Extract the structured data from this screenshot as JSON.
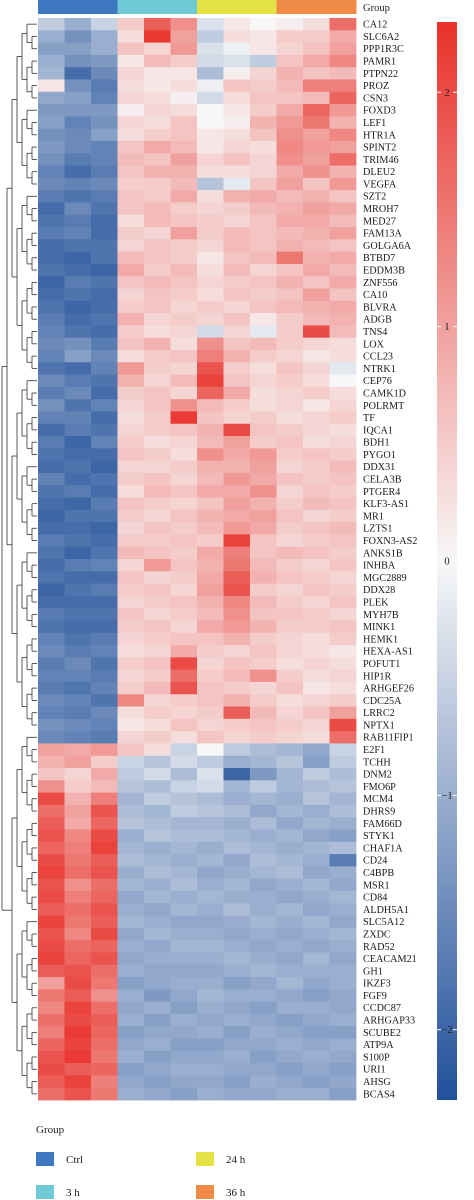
{
  "chart_data": {
    "type": "heatmap",
    "annotation_title": "Group",
    "legend_title": "Group",
    "groups": [
      {
        "name": "Ctrl",
        "color": "#3d78c0",
        "n": 3
      },
      {
        "name": "3 h",
        "color": "#6fc9d6",
        "n": 3
      },
      {
        "name": "24 h",
        "color": "#e4e244",
        "n": 3
      },
      {
        "name": "36 h",
        "color": "#ef8a47",
        "n": 3
      }
    ],
    "colorbar": {
      "ticks": [
        2,
        1,
        0,
        -1,
        -2
      ],
      "tick_labels": [
        "2",
        "1",
        "0",
        "−1",
        "−2"
      ],
      "range": [
        -2.3,
        2.3
      ],
      "low_color": "#21509a",
      "mid_color": "#f7f7f7",
      "high_color": "#e8322a"
    },
    "genes": [
      "CA12",
      "SLC6A2",
      "PPP1R3C",
      "PAMR1",
      "PTPN22",
      "PROZ",
      "CSN3",
      "FOXD3",
      "LEF1",
      "HTR1A",
      "SPINT2",
      "TRIM46",
      "DLEU2",
      "VEGFA",
      "SZT2",
      "MROH7",
      "MED27",
      "FAM13A",
      "GOLGA6A",
      "BTBD7",
      "EDDM3B",
      "ZNF556",
      "CA10",
      "BLVRA",
      "ADGB",
      "TNS4",
      "LOX",
      "CCL23",
      "NTRK1",
      "CEP76",
      "CAMK1D",
      "POLRMT",
      "TF",
      "IQCA1",
      "BDH1",
      "PYGO1",
      "DDX31",
      "CELA3B",
      "PTGER4",
      "KLF3-AS1",
      "MR1",
      "LZTS1",
      "FOXN3-AS2",
      "ANKS1B",
      "INHBA",
      "MGC2889",
      "DDX28",
      "PLEK",
      "MYH7B",
      "MINK1",
      "HEMK1",
      "HEXA-AS1",
      "POFUT1",
      "HIP1R",
      "ARHGEF26",
      "CDC25A",
      "LRRC2",
      "NPTX1",
      "RAB11FIP1",
      "E2F1",
      "TCHH",
      "DNM2",
      "FMO6P",
      "MCM4",
      "DHRS9",
      "FAM66D",
      "STYK1",
      "CHAF1A",
      "CD24",
      "C4BPB",
      "MSR1",
      "CD84",
      "ALDH5A1",
      "SLC5A12",
      "ZXDC",
      "RAD52",
      "CEACAM21",
      "GH1",
      "IKZF3",
      "FGF9",
      "CCDC87",
      "ARHGAP33",
      "SCUBE2",
      "ATP9A",
      "S100P",
      "URI1",
      "AHSG",
      "BCAS4"
    ],
    "values": [
      [
        -0.6,
        -1.0,
        -0.5,
        0.5,
        1.8,
        1.2,
        -0.3,
        0.2,
        0.0,
        0.1,
        0.3,
        1.6
      ],
      [
        -1.0,
        -1.4,
        -1.0,
        0.3,
        2.2,
        1.0,
        -0.6,
        0.3,
        0.2,
        0.5,
        0.5,
        0.9
      ],
      [
        -1.2,
        -1.2,
        -1.0,
        0.6,
        0.4,
        1.1,
        -0.3,
        -0.1,
        0.2,
        0.4,
        0.6,
        1.0
      ],
      [
        -1.0,
        -1.4,
        -1.3,
        0.2,
        0.7,
        0.5,
        -0.4,
        -0.3,
        -0.6,
        0.6,
        0.9,
        1.3
      ],
      [
        -0.9,
        -1.9,
        -1.5,
        0.4,
        0.2,
        0.2,
        -0.8,
        0.1,
        0.4,
        0.8,
        0.6,
        0.7
      ],
      [
        0.2,
        -1.4,
        -1.7,
        0.3,
        0.2,
        0.3,
        -0.1,
        0.6,
        0.5,
        0.7,
        1.4,
        1.4
      ],
      [
        -1.1,
        -1.2,
        -1.6,
        0.4,
        0.3,
        0.1,
        -0.4,
        0.3,
        0.6,
        0.6,
        0.7,
        1.7
      ],
      [
        -1.3,
        -1.3,
        -1.3,
        0.1,
        0.4,
        0.3,
        0.0,
        0.2,
        0.5,
        0.9,
        1.7,
        1.1
      ],
      [
        -1.2,
        -1.6,
        -1.4,
        0.4,
        0.3,
        0.6,
        0.0,
        0.1,
        0.8,
        1.1,
        1.5,
        0.8
      ],
      [
        -1.4,
        -1.5,
        -1.2,
        0.3,
        0.5,
        0.6,
        0.2,
        0.3,
        0.6,
        1.2,
        1.0,
        1.3
      ],
      [
        -1.3,
        -1.5,
        -1.6,
        0.6,
        0.9,
        0.7,
        0.2,
        0.4,
        0.3,
        1.3,
        1.1,
        1.0
      ],
      [
        -1.4,
        -1.7,
        -1.6,
        0.7,
        0.6,
        1.0,
        0.4,
        0.6,
        0.4,
        1.2,
        1.0,
        1.6
      ],
      [
        -1.6,
        -1.9,
        -1.7,
        0.6,
        0.8,
        0.8,
        0.3,
        0.3,
        0.4,
        0.9,
        1.2,
        0.8
      ],
      [
        -1.5,
        -1.6,
        -1.5,
        0.5,
        0.5,
        0.7,
        -0.7,
        -0.2,
        0.6,
        1.0,
        0.6,
        1.1
      ],
      [
        -1.7,
        -1.8,
        -1.7,
        0.6,
        0.5,
        0.9,
        0.3,
        0.8,
        0.9,
        0.7,
        0.8,
        0.6
      ],
      [
        -1.9,
        -1.5,
        -1.8,
        0.6,
        0.7,
        0.5,
        0.4,
        0.5,
        0.7,
        0.8,
        1.0,
        0.9
      ],
      [
        -1.8,
        -1.7,
        -1.9,
        0.3,
        0.7,
        0.6,
        0.5,
        0.4,
        0.6,
        0.9,
        0.9,
        0.7
      ],
      [
        -1.7,
        -1.6,
        -1.9,
        0.5,
        0.4,
        1.0,
        0.5,
        0.7,
        0.6,
        0.7,
        0.8,
        1.0
      ],
      [
        -1.9,
        -1.8,
        -1.8,
        0.4,
        0.6,
        0.5,
        0.4,
        0.7,
        0.6,
        0.8,
        0.7,
        0.6
      ],
      [
        -1.9,
        -2.0,
        -1.8,
        0.7,
        0.6,
        0.5,
        0.2,
        0.6,
        0.7,
        1.5,
        0.8,
        0.9
      ],
      [
        -1.8,
        -1.9,
        -2.0,
        0.9,
        0.5,
        0.7,
        0.3,
        0.7,
        0.4,
        0.6,
        0.9,
        0.7
      ],
      [
        -2.0,
        -1.7,
        -1.8,
        0.6,
        0.7,
        0.6,
        0.4,
        0.5,
        0.6,
        0.8,
        0.6,
        0.9
      ],
      [
        -1.9,
        -1.8,
        -1.9,
        0.4,
        0.6,
        0.5,
        0.3,
        0.6,
        0.5,
        0.6,
        1.0,
        0.6
      ],
      [
        -1.8,
        -2.0,
        -1.9,
        0.5,
        0.6,
        0.4,
        0.5,
        0.4,
        0.6,
        0.7,
        0.8,
        0.9
      ],
      [
        -1.7,
        -1.9,
        -1.8,
        0.8,
        0.4,
        0.5,
        0.4,
        0.6,
        0.2,
        0.5,
        0.7,
        0.8
      ],
      [
        -1.6,
        -1.8,
        -1.9,
        0.5,
        0.3,
        0.4,
        -0.4,
        0.4,
        -0.2,
        0.5,
        2.0,
        0.7
      ],
      [
        -1.5,
        -1.4,
        -1.7,
        0.6,
        0.8,
        0.3,
        1.2,
        0.6,
        0.7,
        0.5,
        0.4,
        0.3
      ],
      [
        -1.6,
        -1.2,
        -1.5,
        0.3,
        0.5,
        0.6,
        1.4,
        0.8,
        0.5,
        0.4,
        0.2,
        0.3
      ],
      [
        -1.8,
        -1.9,
        -1.6,
        1.1,
        0.5,
        0.4,
        1.9,
        0.5,
        0.3,
        0.6,
        0.4,
        -0.2
      ],
      [
        -1.5,
        -1.7,
        -1.8,
        0.8,
        0.4,
        0.7,
        2.1,
        0.6,
        0.4,
        0.5,
        0.3,
        0.0
      ],
      [
        -1.7,
        -1.5,
        -1.9,
        0.5,
        0.6,
        0.4,
        1.7,
        0.9,
        0.3,
        0.4,
        0.5,
        0.3
      ],
      [
        -1.4,
        -1.8,
        -1.6,
        0.4,
        0.6,
        1.2,
        0.7,
        0.5,
        0.3,
        0.4,
        0.2,
        0.4
      ],
      [
        -1.6,
        -1.6,
        -1.9,
        0.3,
        0.5,
        2.2,
        0.6,
        0.4,
        0.5,
        0.3,
        0.4,
        0.5
      ],
      [
        -1.9,
        -1.7,
        -1.8,
        0.4,
        0.5,
        0.6,
        0.8,
        2.0,
        0.6,
        0.5,
        0.4,
        0.3
      ],
      [
        -1.7,
        -2.0,
        -1.6,
        0.5,
        0.3,
        0.4,
        0.7,
        1.0,
        0.5,
        0.6,
        0.3,
        0.4
      ],
      [
        -1.8,
        -1.9,
        -1.9,
        0.6,
        0.5,
        0.3,
        1.2,
        0.9,
        1.1,
        0.5,
        0.6,
        0.5
      ],
      [
        -1.9,
        -1.8,
        -2.0,
        0.4,
        0.4,
        0.5,
        0.8,
        0.8,
        1.0,
        0.4,
        0.5,
        0.7
      ],
      [
        -1.6,
        -1.9,
        -1.8,
        0.5,
        0.6,
        0.4,
        0.7,
        1.1,
        0.9,
        0.6,
        0.5,
        0.6
      ],
      [
        -1.8,
        -1.7,
        -1.9,
        0.3,
        0.7,
        0.6,
        0.9,
        0.9,
        1.2,
        0.4,
        0.6,
        0.5
      ],
      [
        -1.9,
        -2.0,
        -1.7,
        0.6,
        0.5,
        0.4,
        0.6,
        1.0,
        0.8,
        0.5,
        0.7,
        0.6
      ],
      [
        -2.0,
        -1.8,
        -1.8,
        0.5,
        0.4,
        0.6,
        0.8,
        0.9,
        1.0,
        0.6,
        0.4,
        0.5
      ],
      [
        -1.9,
        -1.9,
        -2.0,
        0.4,
        0.6,
        0.5,
        0.7,
        1.1,
        0.9,
        0.5,
        0.6,
        0.7
      ],
      [
        -1.7,
        -1.8,
        -1.9,
        0.5,
        0.5,
        0.6,
        0.5,
        2.1,
        0.6,
        0.4,
        0.5,
        0.6
      ],
      [
        -1.8,
        -2.0,
        -1.8,
        0.7,
        0.6,
        0.5,
        0.9,
        1.4,
        0.6,
        0.7,
        0.6,
        0.5
      ],
      [
        -1.9,
        -1.7,
        -1.6,
        0.4,
        1.1,
        0.6,
        0.8,
        1.5,
        0.7,
        0.5,
        0.4,
        0.6
      ],
      [
        -1.8,
        -1.9,
        -1.9,
        0.6,
        0.4,
        0.5,
        0.9,
        1.8,
        0.8,
        0.6,
        0.5,
        0.4
      ],
      [
        -2.0,
        -1.8,
        -1.7,
        0.5,
        0.6,
        0.4,
        1.0,
        1.9,
        0.5,
        0.4,
        0.6,
        0.5
      ],
      [
        -1.9,
        -1.9,
        -1.9,
        0.4,
        0.5,
        0.6,
        0.8,
        1.3,
        0.7,
        0.5,
        0.4,
        0.6
      ],
      [
        -1.7,
        -1.8,
        -1.8,
        0.6,
        0.4,
        0.5,
        0.7,
        1.2,
        0.6,
        0.6,
        0.5,
        0.4
      ],
      [
        -1.8,
        -1.9,
        -1.9,
        0.5,
        0.6,
        0.4,
        0.9,
        1.1,
        0.8,
        0.5,
        0.5,
        0.6
      ],
      [
        -1.6,
        -1.8,
        -1.7,
        0.4,
        0.5,
        0.6,
        0.6,
        0.8,
        0.5,
        0.4,
        0.3,
        0.5
      ],
      [
        -1.5,
        -1.7,
        -1.6,
        0.3,
        0.4,
        0.9,
        0.5,
        0.4,
        0.6,
        0.4,
        0.3,
        0.2
      ],
      [
        -1.7,
        -1.5,
        -1.8,
        0.5,
        0.6,
        2.0,
        0.4,
        0.6,
        0.5,
        0.3,
        0.4,
        0.3
      ],
      [
        -1.6,
        -1.6,
        -1.7,
        0.4,
        0.5,
        1.6,
        0.5,
        0.7,
        1.2,
        0.5,
        0.3,
        0.4
      ],
      [
        -1.7,
        -1.8,
        -1.6,
        0.5,
        0.7,
        1.9,
        0.6,
        0.5,
        0.4,
        0.6,
        0.2,
        0.3
      ],
      [
        -1.5,
        -1.6,
        -1.8,
        1.3,
        0.4,
        0.5,
        0.6,
        0.8,
        0.5,
        0.3,
        0.4,
        0.5
      ],
      [
        -1.6,
        -1.7,
        -1.5,
        0.3,
        0.5,
        0.4,
        0.5,
        1.8,
        0.7,
        0.4,
        0.6,
        1.0
      ],
      [
        -1.4,
        -1.5,
        -1.6,
        0.2,
        0.3,
        0.6,
        0.4,
        0.5,
        0.6,
        0.5,
        0.4,
        2.0
      ],
      [
        -1.5,
        -1.6,
        -1.7,
        0.4,
        0.5,
        0.3,
        0.6,
        0.4,
        0.5,
        0.4,
        0.3,
        1.6
      ],
      [
        1.0,
        0.9,
        1.1,
        0.6,
        0.3,
        -0.5,
        0.0,
        -0.6,
        -0.8,
        -0.9,
        -1.1,
        -0.5
      ],
      [
        0.8,
        1.0,
        0.5,
        -0.5,
        -0.7,
        -0.4,
        -0.6,
        -1.0,
        -0.9,
        -0.7,
        -1.2,
        -0.6
      ],
      [
        0.6,
        0.4,
        0.9,
        -0.6,
        -0.4,
        -0.8,
        -0.3,
        -2.0,
        -1.3,
        -0.9,
        -0.6,
        -0.8
      ],
      [
        1.2,
        0.5,
        0.7,
        -0.7,
        -0.8,
        -0.5,
        -0.4,
        -0.9,
        -0.6,
        -0.9,
        -0.8,
        -0.7
      ],
      [
        2.0,
        0.8,
        1.4,
        -0.9,
        -0.6,
        -0.7,
        -0.8,
        -1.0,
        -0.9,
        -1.0,
        -0.7,
        -0.9
      ],
      [
        1.6,
        1.0,
        1.9,
        -0.8,
        -0.9,
        -0.6,
        -0.7,
        -0.8,
        -1.1,
        -0.9,
        -1.0,
        -0.8
      ],
      [
        1.8,
        0.9,
        1.7,
        -0.7,
        -0.8,
        -0.9,
        -0.9,
        -1.0,
        -0.8,
        -1.1,
        -0.9,
        -1.0
      ],
      [
        1.9,
        1.3,
        2.0,
        -1.0,
        -0.7,
        -0.8,
        -0.8,
        -0.9,
        -1.0,
        -0.9,
        -1.1,
        -1.2
      ],
      [
        1.7,
        1.4,
        2.1,
        -0.9,
        -1.0,
        -0.9,
        -1.0,
        -0.8,
        -0.9,
        -1.0,
        -0.9,
        -0.8
      ],
      [
        2.0,
        1.5,
        1.8,
        -0.8,
        -0.9,
        -1.0,
        -0.9,
        -1.1,
        -0.8,
        -0.9,
        -1.0,
        -1.7
      ],
      [
        2.1,
        1.6,
        1.9,
        -1.0,
        -0.8,
        -0.9,
        -1.1,
        -1.0,
        -0.9,
        -0.8,
        -1.1,
        -1.0
      ],
      [
        1.9,
        1.2,
        1.6,
        -0.9,
        -1.0,
        -0.8,
        -1.0,
        -0.9,
        -1.1,
        -1.0,
        -0.9,
        -1.1
      ],
      [
        2.0,
        1.4,
        1.7,
        -1.1,
        -0.9,
        -1.0,
        -0.9,
        -1.0,
        -1.0,
        -1.1,
        -1.0,
        -0.9
      ],
      [
        1.8,
        1.6,
        1.9,
        -1.0,
        -1.1,
        -0.9,
        -1.0,
        -0.8,
        -1.0,
        -0.9,
        -1.1,
        -1.0
      ],
      [
        2.1,
        1.5,
        1.8,
        -0.9,
        -1.0,
        -1.1,
        -1.1,
        -1.0,
        -0.9,
        -1.0,
        -0.9,
        -1.1
      ],
      [
        1.9,
        1.3,
        2.0,
        -1.1,
        -0.9,
        -1.0,
        -1.0,
        -1.1,
        -1.0,
        -1.1,
        -1.0,
        -0.9
      ],
      [
        2.0,
        1.6,
        1.7,
        -1.0,
        -1.1,
        -0.9,
        -0.9,
        -1.0,
        -1.1,
        -1.0,
        -1.1,
        -1.0
      ],
      [
        2.1,
        1.7,
        1.9,
        -1.1,
        -1.0,
        -1.0,
        -1.0,
        -0.9,
        -1.0,
        -1.1,
        -0.9,
        -1.1
      ],
      [
        1.8,
        1.9,
        1.6,
        -1.0,
        -1.1,
        -1.1,
        -1.1,
        -1.0,
        -0.9,
        -1.0,
        -1.0,
        -1.0
      ],
      [
        1.0,
        2.0,
        1.5,
        -1.2,
        -1.1,
        -1.0,
        -1.0,
        -1.2,
        -1.1,
        -0.9,
        -1.1,
        -1.0
      ],
      [
        1.5,
        1.8,
        1.2,
        -1.0,
        -1.3,
        -1.1,
        -0.9,
        -1.0,
        -1.0,
        -1.1,
        -1.2,
        -1.1
      ],
      [
        1.3,
        2.1,
        1.6,
        -1.1,
        -1.0,
        -1.2,
        -1.0,
        -1.1,
        -1.2,
        -1.0,
        -1.0,
        -1.1
      ],
      [
        1.6,
        2.0,
        1.8,
        -1.0,
        -1.2,
        -1.0,
        -1.1,
        -1.0,
        -1.1,
        -1.2,
        -1.1,
        -1.0
      ],
      [
        1.4,
        2.2,
        1.7,
        -1.2,
        -1.1,
        -1.1,
        -1.0,
        -1.2,
        -1.0,
        -1.1,
        -1.2,
        -1.2
      ],
      [
        1.7,
        2.1,
        1.6,
        -1.1,
        -1.0,
        -1.2,
        -1.2,
        -1.1,
        -1.1,
        -1.0,
        -1.1,
        -1.0
      ],
      [
        1.9,
        2.2,
        1.5,
        -1.0,
        -1.2,
        -1.1,
        -1.1,
        -1.0,
        -1.2,
        -1.1,
        -1.0,
        -1.1
      ],
      [
        2.0,
        1.8,
        1.7,
        -1.2,
        -1.1,
        -1.0,
        -1.0,
        -1.1,
        -1.1,
        -1.2,
        -1.1,
        -1.2
      ],
      [
        1.8,
        2.1,
        1.4,
        -1.1,
        -1.2,
        -1.1,
        -1.1,
        -1.2,
        -1.0,
        -1.1,
        -1.2,
        -1.1
      ],
      [
        1.6,
        1.9,
        1.5,
        -1.0,
        -1.1,
        -1.2,
        -1.0,
        -1.1,
        -1.1,
        -1.0,
        -1.0,
        -1.2
      ]
    ]
  }
}
